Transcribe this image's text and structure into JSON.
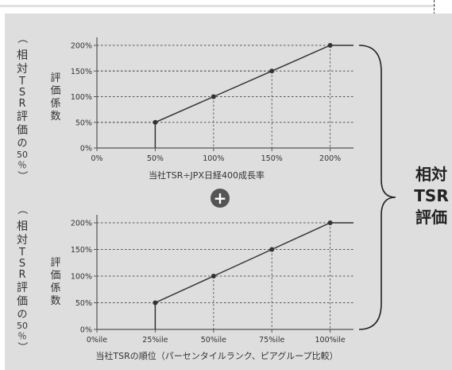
{
  "figure": {
    "side_label_chars": [
      "（",
      "相",
      "対",
      "T",
      "S",
      "R",
      "評",
      "価",
      "の",
      "50",
      "％",
      "）"
    ],
    "coef_label_chars": [
      "評",
      "価",
      "係",
      "数"
    ],
    "plus_symbol": "+",
    "brace_label_lines": [
      "相対",
      "TSR",
      "評価"
    ]
  },
  "chart_data": [
    {
      "type": "line",
      "xlabel": "当社TSR÷JPX日経400成長率",
      "ylabel": "評価係数",
      "x_tick_labels": [
        "0%",
        "50%",
        "100%",
        "150%",
        "200%"
      ],
      "y_tick_labels": [
        "0%",
        "50%",
        "100%",
        "150%",
        "200%"
      ],
      "xlim": [
        0,
        220
      ],
      "ylim": [
        0,
        200
      ],
      "points": [
        [
          50,
          0
        ],
        [
          50,
          50
        ],
        [
          100,
          100
        ],
        [
          150,
          150
        ],
        [
          200,
          200
        ],
        [
          220,
          200
        ]
      ],
      "markers": [
        [
          50,
          50
        ],
        [
          100,
          100
        ],
        [
          150,
          150
        ],
        [
          200,
          200
        ]
      ]
    },
    {
      "type": "line",
      "xlabel": "当社TSRの順位（パーセンタイルランク、ピアグループ比較）",
      "ylabel": "評価係数",
      "x_tick_labels": [
        "0%ile",
        "25%ile",
        "50%ile",
        "75%ile",
        "100%ile"
      ],
      "y_tick_labels": [
        "0%",
        "50%",
        "100%",
        "150%",
        "200%"
      ],
      "xlim": [
        0,
        110
      ],
      "ylim": [
        0,
        200
      ],
      "points": [
        [
          25,
          0
        ],
        [
          25,
          50
        ],
        [
          50,
          100
        ],
        [
          75,
          150
        ],
        [
          100,
          200
        ],
        [
          110,
          200
        ]
      ],
      "markers": [
        [
          25,
          50
        ],
        [
          50,
          100
        ],
        [
          75,
          150
        ],
        [
          100,
          200
        ]
      ]
    }
  ]
}
